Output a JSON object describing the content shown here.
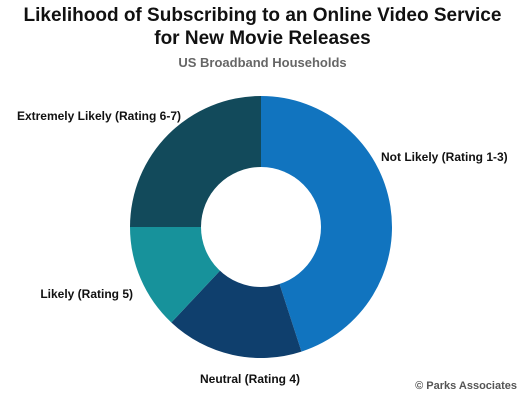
{
  "chart_data": {
    "type": "pie",
    "title_line1": "Likelihood of Subscribing to an Online Video Service",
    "title_line2": "for New Movie Releases",
    "subtitle": "US Broadband Households",
    "slices": [
      {
        "label": "Not Likely (Rating 1-3)",
        "value": 45,
        "color": "#1174bf"
      },
      {
        "label": "Neutral (Rating 4)",
        "value": 17,
        "color": "#0f3f6d"
      },
      {
        "label": "Likely (Rating 5)",
        "value": 13,
        "color": "#17929b"
      },
      {
        "label": "Extremely Likely (Rating 6-7)",
        "value": 25,
        "color": "#124a5b"
      }
    ]
  },
  "footer": {
    "copyright": "© Parks Associates"
  }
}
